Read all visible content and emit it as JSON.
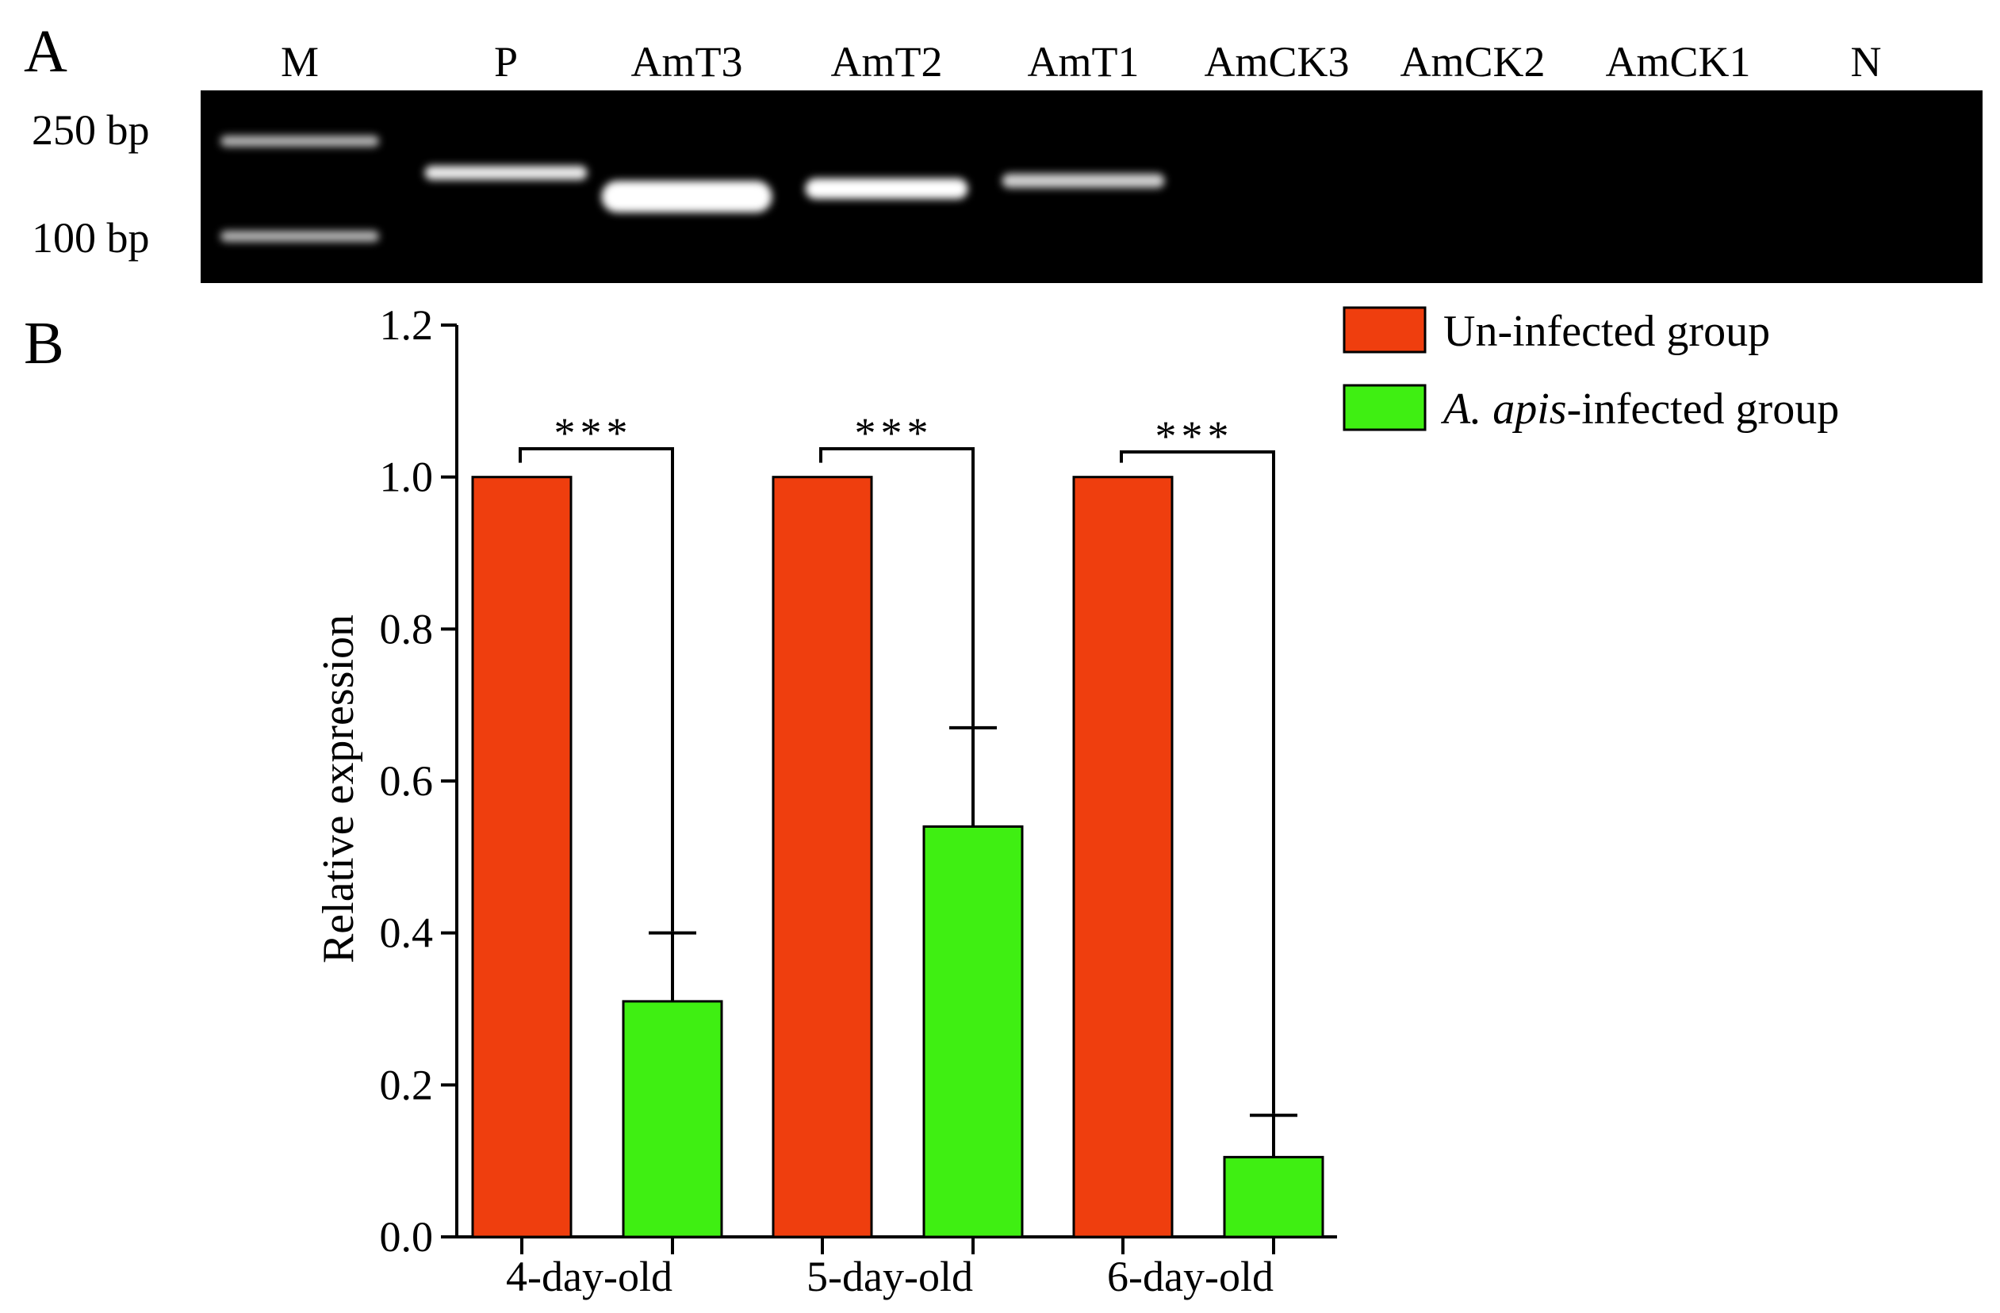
{
  "panel_a": {
    "label": "A",
    "lanes": [
      "M",
      "P",
      "AmT3",
      "AmT2",
      "AmT1",
      "AmCK3",
      "AmCK2",
      "AmCK1",
      "N"
    ],
    "markers": [
      "250 bp",
      "100 bp"
    ],
    "bands": [
      {
        "lane": "M",
        "intensity": 0.45
      },
      {
        "lane": "P",
        "intensity": 0.85
      },
      {
        "lane": "AmT3",
        "intensity": 1.0
      },
      {
        "lane": "AmT2",
        "intensity": 1.0
      },
      {
        "lane": "AmT1",
        "intensity": 0.65
      }
    ]
  },
  "panel_b": {
    "label": "B"
  },
  "chart_data": {
    "type": "bar",
    "title": "",
    "xlabel": "",
    "ylabel": "Relative expression",
    "ylim": [
      0,
      1.2
    ],
    "yticks": [
      "0.0",
      "0.2",
      "0.4",
      "0.6",
      "0.8",
      "1.0",
      "1.2"
    ],
    "categories": [
      "4-day-old",
      "5-day-old",
      "6-day-old"
    ],
    "series": [
      {
        "name": "Un-infected group",
        "color": "#EF3E0E",
        "values": [
          1.0,
          1.0,
          1.0
        ],
        "error": [
          0,
          0,
          0
        ]
      },
      {
        "name": "A. apis-infected group",
        "name_italic": "A. apis",
        "name_rest": "-infected group",
        "color": "#3FEF12",
        "values": [
          0.31,
          0.54,
          0.105
        ],
        "error": [
          0.09,
          0.13,
          0.055
        ]
      }
    ],
    "significance": [
      "***",
      "***",
      "***"
    ],
    "legend_position": "top-right",
    "grid": false
  }
}
